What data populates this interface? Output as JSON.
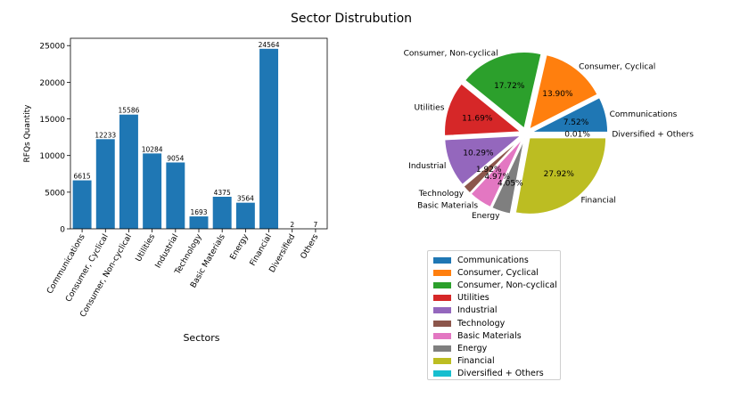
{
  "figure": {
    "title": "Sector Distrubution"
  },
  "chart_data": [
    {
      "type": "bar",
      "xlabel": "Sectors",
      "ylabel": "RFQs Quantity",
      "ylim": [
        0,
        26000
      ],
      "yticks": [
        0,
        5000,
        10000,
        15000,
        20000,
        25000
      ],
      "grid": false,
      "color": "#1f77b4",
      "categories": [
        "Communications",
        "Consumer, Cyclical",
        "Consumer, Non-cyclical",
        "Utilities",
        "Industrial",
        "Technology",
        "Basic Materials",
        "Energy",
        "Financial",
        "Diversified",
        "Others"
      ],
      "values": [
        6615,
        12233,
        15586,
        10284,
        9054,
        1693,
        4375,
        3564,
        24564,
        2,
        7
      ],
      "value_labels": [
        "6615",
        "12233",
        "15586",
        "10284",
        "9054",
        "1693",
        "4375",
        "3564",
        "24564",
        "2",
        "7"
      ]
    },
    {
      "type": "pie",
      "labels": [
        "Communications",
        "Consumer, Cyclical",
        "Consumer, Non-cyclical",
        "Utilities",
        "Industrial",
        "Technology",
        "Basic Materials",
        "Energy",
        "Financial",
        "Diversified + Others"
      ],
      "values": [
        7.52,
        13.9,
        17.72,
        11.69,
        10.29,
        1.92,
        4.97,
        4.05,
        27.92,
        0.01
      ],
      "pct_labels": [
        "7.52%",
        "13.90%",
        "17.72%",
        "11.69%",
        "10.29%",
        "1.92%",
        "4.97%",
        "4.05%",
        "27.92%",
        "0.01%"
      ],
      "colors": [
        "#1f77b4",
        "#ff7f0e",
        "#2ca02c",
        "#d62728",
        "#9467bd",
        "#8c564b",
        "#e377c2",
        "#7f7f7f",
        "#bcbd22",
        "#17becf"
      ],
      "exploded": true,
      "legend": "below"
    }
  ]
}
